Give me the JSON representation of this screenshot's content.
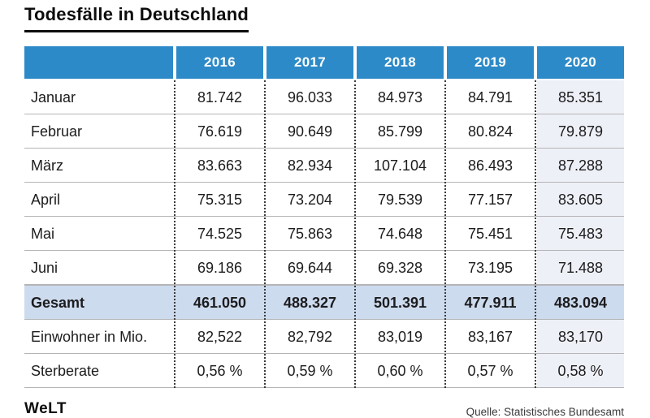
{
  "title": "Todesfälle in Deutschland",
  "table": {
    "columns": [
      "2016",
      "2017",
      "2018",
      "2019",
      "2020"
    ],
    "rows": [
      {
        "label": "Januar",
        "values": [
          "81.742",
          "96.033",
          "84.973",
          "84.791",
          "85.351"
        ]
      },
      {
        "label": "Februar",
        "values": [
          "76.619",
          "90.649",
          "85.799",
          "80.824",
          "79.879"
        ]
      },
      {
        "label": "März",
        "values": [
          "83.663",
          "82.934",
          "107.104",
          "86.493",
          "87.288"
        ]
      },
      {
        "label": "April",
        "values": [
          "75.315",
          "73.204",
          "79.539",
          "77.157",
          "83.605"
        ]
      },
      {
        "label": "Mai",
        "values": [
          "74.525",
          "75.863",
          "74.648",
          "75.451",
          "75.483"
        ]
      },
      {
        "label": "Juni",
        "values": [
          "69.186",
          "69.644",
          "69.328",
          "73.195",
          "71.488"
        ]
      },
      {
        "label": "Gesamt",
        "values": [
          "461.050",
          "488.327",
          "501.391",
          "477.911",
          "483.094"
        ]
      },
      {
        "label": "Einwohner in Mio.",
        "values": [
          "82,522",
          "82,792",
          "83,019",
          "83,167",
          "83,170"
        ]
      },
      {
        "label": "Sterberate",
        "values": [
          "0,56 %",
          "0,59 %",
          "0,60 %",
          "0,57 %",
          "0,58 %"
        ]
      }
    ]
  },
  "footer": {
    "brand": "WeLT",
    "source": "Quelle: Statistisches Bundesamt"
  },
  "colors": {
    "header_bg": "#2d8ac8",
    "gesamt_bg": "#cddbee",
    "col2020_bg": "#eef0f7",
    "row_line": "#b5b5b8",
    "dot_color": "#3a3a3a",
    "text_color": "#1c1c1e"
  },
  "chart_data": {
    "type": "table",
    "title": "Todesfälle in Deutschland",
    "columns": [
      "",
      "2016",
      "2017",
      "2018",
      "2019",
      "2020"
    ],
    "rows": [
      [
        "Januar",
        81742,
        96033,
        84973,
        84791,
        85351
      ],
      [
        "Februar",
        76619,
        90649,
        85799,
        80824,
        79879
      ],
      [
        "März",
        83663,
        82934,
        107104,
        86493,
        87288
      ],
      [
        "April",
        75315,
        73204,
        79539,
        77157,
        83605
      ],
      [
        "Mai",
        74525,
        75863,
        74648,
        75451,
        75483
      ],
      [
        "Juni",
        69186,
        69644,
        69328,
        73195,
        71488
      ],
      [
        "Gesamt",
        461050,
        488327,
        501391,
        477911,
        483094
      ],
      [
        "Einwohner in Mio.",
        "82,522",
        "82,792",
        "83,019",
        "83,167",
        "83,170"
      ],
      [
        "Sterberate",
        "0,56 %",
        "0,59 %",
        "0,60 %",
        "0,57 %",
        "0,58 %"
      ]
    ],
    "notes": "Gesamt row highlighted; 2020 column shaded; source Statistisches Bundesamt"
  }
}
